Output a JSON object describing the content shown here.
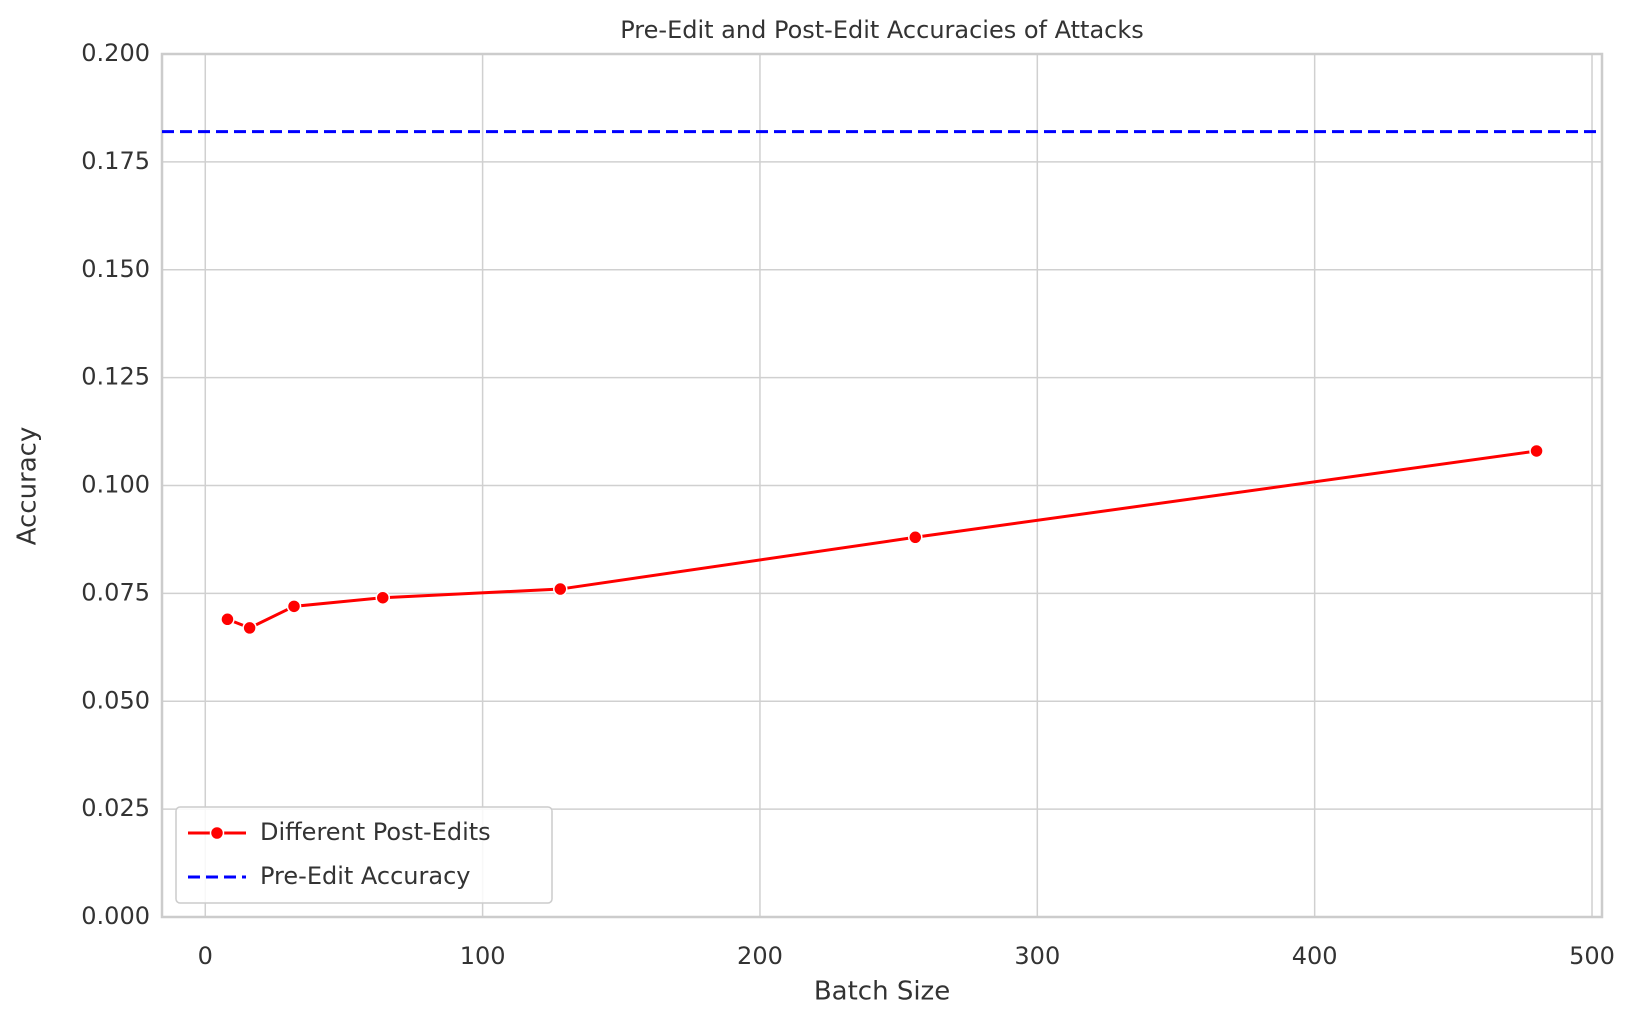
{
  "chart_data": {
    "type": "line",
    "title": "Pre-Edit and Post-Edit Accuracies of Attacks",
    "x_label": "Batch Size",
    "y_label": "Accuracy",
    "x": [
      8,
      16,
      32,
      64,
      128,
      256,
      480
    ],
    "series": [
      {
        "name": "Different Post-Edits",
        "color": "#ff0000",
        "values": [
          0.069,
          0.067,
          0.072,
          0.074,
          0.076,
          0.088,
          0.108
        ]
      }
    ],
    "reference_line": {
      "name": "Pre-Edit Accuracy",
      "color": "#0000ff",
      "value": 0.182
    },
    "xlim": [
      -15.6,
      503.6
    ],
    "xticks": [
      0,
      100,
      200,
      300,
      400,
      500
    ],
    "ylim": [
      0,
      0.2
    ],
    "yticks": [
      {
        "value": 0,
        "label": "0.000"
      },
      0.025,
      {
        "value": 0.05,
        "label": "0.050"
      },
      0.075,
      {
        "value": 0.1,
        "label": "0.100"
      },
      0.125,
      {
        "value": 0.15,
        "label": "0.150"
      },
      0.175,
      {
        "value": 0.2,
        "label": "0.200"
      }
    ],
    "grid": true,
    "legend": "lower left"
  }
}
